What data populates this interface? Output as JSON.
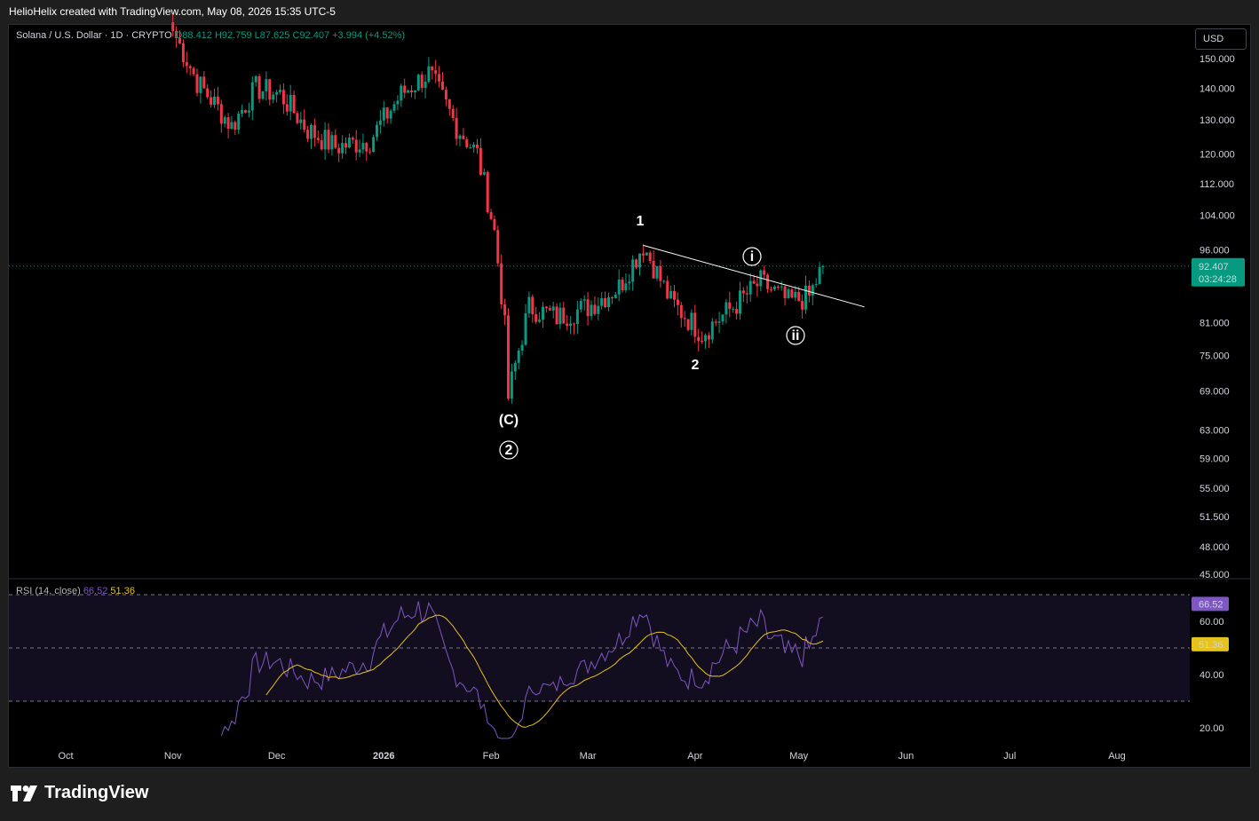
{
  "header": {
    "attribution": "HelioHelix created with TradingView.com, May 08, 2026 15:35 UTC-5"
  },
  "legend": {
    "symbol": "Solana / U.S. Dollar · 1D · CRYPTO",
    "open": "O88.412",
    "high": "H92.759",
    "low": "L87.625",
    "close": "C92.407",
    "change": "+3.994 (+4.52%)"
  },
  "currency_button": "USD",
  "rsi_legend": {
    "label": "RSI (14, close)",
    "rsi": "66.52",
    "ma": "51.36"
  },
  "price_tag": {
    "price": "92.407",
    "countdown": "03:24:28"
  },
  "rsi_tags": {
    "rsi": "66.52",
    "ma": "51.36"
  },
  "branding": {
    "name": "TradingView"
  },
  "wave_labels": {
    "C": "(C)",
    "circled_2": "2",
    "w1": "1",
    "w2": "2",
    "i": "i",
    "ii": "ii"
  },
  "colors": {
    "up": "#089981",
    "down": "#f23645",
    "rsi": "#7e57c2",
    "rsi_ma": "#e6c21c",
    "price_tag": "#089981",
    "background": "#000000"
  },
  "chart_data": [
    {
      "type": "candlestick",
      "title": "Solana / U.S. Dollar · 1D · CRYPTO",
      "x_tick_labels": [
        "Oct",
        "Nov",
        "Dec",
        "2026",
        "Feb",
        "Mar",
        "Apr",
        "May",
        "Jun",
        "Jul",
        "Aug"
      ],
      "y_tick_labels": [
        "150.000",
        "140.000",
        "130.000",
        "120.000",
        "112.000",
        "104.000",
        "96.000",
        "81.000",
        "75.000",
        "69.000",
        "63.000",
        "59.000",
        "55.000",
        "51.500",
        "48.000",
        "45.000"
      ],
      "y_scale": "log",
      "last_close": 92.407,
      "approx_closes": [
        {
          "date": "2025-11-01",
          "close": 160
        },
        {
          "date": "2025-11-08",
          "close": 142
        },
        {
          "date": "2025-11-18",
          "close": 128
        },
        {
          "date": "2025-11-25",
          "close": 140
        },
        {
          "date": "2025-12-02",
          "close": 138
        },
        {
          "date": "2025-12-10",
          "close": 127
        },
        {
          "date": "2025-12-18",
          "close": 122
        },
        {
          "date": "2025-12-28",
          "close": 124
        },
        {
          "date": "2026-01-06",
          "close": 138
        },
        {
          "date": "2026-01-14",
          "close": 145
        },
        {
          "date": "2026-01-22",
          "close": 128
        },
        {
          "date": "2026-01-28",
          "close": 120
        },
        {
          "date": "2026-02-02",
          "close": 100
        },
        {
          "date": "2026-02-05",
          "close": 80
        },
        {
          "date": "2026-02-06",
          "close": 68
        },
        {
          "date": "2026-02-12",
          "close": 84
        },
        {
          "date": "2026-02-20",
          "close": 82
        },
        {
          "date": "2026-03-01",
          "close": 84
        },
        {
          "date": "2026-03-10",
          "close": 88
        },
        {
          "date": "2026-03-17",
          "close": 97
        },
        {
          "date": "2026-03-25",
          "close": 85
        },
        {
          "date": "2026-04-03",
          "close": 79
        },
        {
          "date": "2026-04-12",
          "close": 84
        },
        {
          "date": "2026-04-20",
          "close": 89
        },
        {
          "date": "2026-04-28",
          "close": 85
        },
        {
          "date": "2026-05-04",
          "close": 86
        },
        {
          "date": "2026-05-08",
          "close": 92.407
        }
      ],
      "annotations": [
        "(C)",
        "2",
        "1",
        "2",
        "i",
        "ii"
      ],
      "trendline": {
        "from": {
          "date": "2026-03-17",
          "value": 97
        },
        "to": {
          "date": "2026-05-20",
          "value": 84
        }
      }
    },
    {
      "type": "line",
      "title": "RSI (14, close)",
      "y_tick_labels": [
        "60.00",
        "40.00",
        "20.00"
      ],
      "ylim": [
        15,
        85
      ],
      "bands": [
        30,
        50,
        70
      ],
      "series": [
        {
          "name": "RSI",
          "last": 66.52
        },
        {
          "name": "MA",
          "last": 51.36
        }
      ]
    }
  ]
}
